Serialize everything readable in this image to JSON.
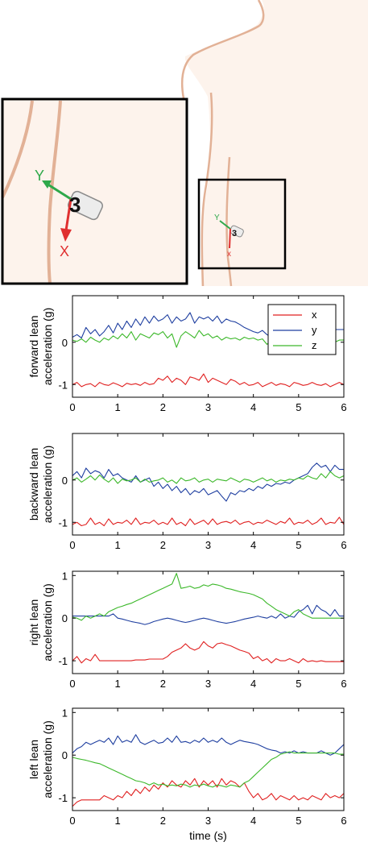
{
  "illustration": {
    "sensor_label": "3",
    "axis_x_label": "X",
    "axis_y_label": "Y",
    "small_sensor_label": "3",
    "small_axis_x_label": "x",
    "small_axis_y_label": "Y",
    "colors": {
      "skin": "#fdf3ec",
      "outline": "#e2b196",
      "x_axis": "#e03030",
      "y_axis": "#2ea84a",
      "frame": "#000000"
    }
  },
  "chart_data": [
    {
      "type": "line",
      "ylabel_line1": "forward lean",
      "ylabel_line2": "acceleration (g)",
      "xlabel": "",
      "xlim": [
        0,
        6
      ],
      "ylim": [
        -1.3,
        1.1
      ],
      "xticks": [
        "0",
        "1",
        "2",
        "3",
        "4",
        "5",
        "6"
      ],
      "yticks": [
        {
          "v": 0,
          "t": "0"
        },
        {
          "v": -1,
          "t": "-1"
        }
      ],
      "legend": {
        "position": "top-right",
        "entries": [
          "x",
          "y",
          "z"
        ]
      },
      "series": [
        {
          "name": "x",
          "color": "#e02020",
          "y": [
            -1.0,
            -0.95,
            -1.05,
            -1.0,
            -0.98,
            -1.05,
            -0.95,
            -1.0,
            -1.02,
            -0.96,
            -1.0,
            -1.05,
            -0.97,
            -1.0,
            -0.98,
            -1.02,
            -0.95,
            -1.0,
            -0.98,
            -0.85,
            -0.9,
            -0.8,
            -0.95,
            -0.85,
            -0.9,
            -1.0,
            -0.82,
            -0.85,
            -0.9,
            -0.75,
            -0.95,
            -0.85,
            -0.9,
            -0.95,
            -1.0,
            -0.88,
            -0.92,
            -1.0,
            -0.95,
            -1.02,
            -1.0,
            -0.95,
            -1.05,
            -1.0,
            -0.95,
            -1.02,
            -0.98,
            -1.0,
            -1.05,
            -0.95,
            -0.98,
            -1.02,
            -1.0,
            -0.95,
            -1.0,
            -1.02,
            -0.98,
            -1.05,
            -1.0,
            -0.95,
            -1.0
          ]
        },
        {
          "name": "y",
          "color": "#1f3fa0",
          "y": [
            0.12,
            0.18,
            0.1,
            0.35,
            0.2,
            0.3,
            0.15,
            0.25,
            0.4,
            0.22,
            0.45,
            0.3,
            0.5,
            0.35,
            0.55,
            0.4,
            0.6,
            0.45,
            0.62,
            0.5,
            0.55,
            0.65,
            0.45,
            0.6,
            0.5,
            0.55,
            0.7,
            0.45,
            0.6,
            0.55,
            0.6,
            0.5,
            0.62,
            0.45,
            0.55,
            0.5,
            0.48,
            0.42,
            0.35,
            0.3,
            0.25,
            0.22,
            0.28,
            0.18,
            0.12,
            0.2,
            0.15,
            0.1,
            0.12,
            0.18,
            0.08,
            0.2,
            0.12,
            0.15,
            0.05,
            0.18,
            0.25,
            0.18,
            0.3,
            0.3,
            0.3
          ]
        },
        {
          "name": "z",
          "color": "#3cb82a",
          "y": [
            0.05,
            0.02,
            0.08,
            0.0,
            0.12,
            0.05,
            0.0,
            0.1,
            0.05,
            0.15,
            0.08,
            0.2,
            0.1,
            0.25,
            0.05,
            0.2,
            0.15,
            0.1,
            0.22,
            0.18,
            0.25,
            0.1,
            0.2,
            -0.12,
            0.15,
            0.25,
            0.18,
            0.1,
            0.28,
            0.15,
            0.2,
            0.1,
            0.15,
            0.05,
            0.12,
            0.08,
            0.1,
            0.05,
            0.12,
            0.08,
            0.1,
            0.05,
            0.08,
            -0.05,
            0.05,
            0.0,
            0.05,
            -0.02,
            0.05,
            0.0,
            0.05,
            0.02,
            0.08,
            0.0,
            0.05,
            0.0,
            0.02,
            0.05,
            0.0,
            0.05,
            0.05
          ]
        }
      ]
    },
    {
      "type": "line",
      "ylabel_line1": "backward lean",
      "ylabel_line2": "acceleration (g)",
      "xlabel": "",
      "xlim": [
        0,
        6
      ],
      "ylim": [
        -1.3,
        1.1
      ],
      "xticks": [
        "0",
        "1",
        "2",
        "3",
        "4",
        "5",
        "6"
      ],
      "yticks": [
        {
          "v": 0,
          "t": "0"
        },
        {
          "v": -1,
          "t": "-1"
        }
      ],
      "series": [
        {
          "name": "x",
          "color": "#e02020",
          "y": [
            -1.05,
            -1.0,
            -1.08,
            -1.05,
            -0.9,
            -1.05,
            -1.0,
            -1.08,
            -0.92,
            -1.05,
            -1.0,
            -1.02,
            -0.95,
            -1.05,
            -0.9,
            -1.05,
            -1.0,
            -1.02,
            -0.95,
            -1.05,
            -1.0,
            -1.05,
            -0.9,
            -1.05,
            -1.0,
            -1.08,
            -0.92,
            -1.05,
            -1.0,
            -0.95,
            -1.05,
            -0.92,
            -1.05,
            -1.0,
            -0.98,
            -1.02,
            -0.95,
            -1.05,
            -1.0,
            -0.98,
            -1.05,
            -1.0,
            -1.02,
            -0.95,
            -1.0,
            -1.05,
            -0.98,
            -1.02,
            -0.9,
            -1.05,
            -1.0,
            -1.02,
            -0.95,
            -1.05,
            -1.0,
            -0.9,
            -1.05,
            -1.0,
            -1.02,
            -0.88,
            -1.05
          ]
        },
        {
          "name": "y",
          "color": "#1f3fa0",
          "y": [
            0.1,
            0.2,
            0.05,
            0.28,
            0.15,
            0.22,
            0.18,
            0.05,
            0.25,
            0.1,
            0.15,
            0.05,
            0.0,
            -0.05,
            0.1,
            -0.05,
            0.0,
            0.05,
            -0.15,
            -0.05,
            -0.2,
            -0.1,
            -0.25,
            -0.15,
            -0.3,
            -0.2,
            -0.35,
            -0.25,
            -0.3,
            -0.2,
            -0.35,
            -0.3,
            -0.25,
            -0.38,
            -0.5,
            -0.3,
            -0.35,
            -0.25,
            -0.28,
            -0.2,
            -0.25,
            -0.15,
            -0.2,
            -0.1,
            -0.15,
            -0.08,
            -0.1,
            -0.05,
            -0.08,
            0.0,
            0.05,
            0.1,
            0.15,
            0.3,
            0.4,
            0.3,
            0.35,
            0.2,
            0.35,
            0.25,
            0.25
          ]
        },
        {
          "name": "z",
          "color": "#3cb82a",
          "y": [
            0.0,
            0.05,
            -0.05,
            0.02,
            0.1,
            0.0,
            0.12,
            0.02,
            -0.05,
            0.05,
            -0.08,
            0.02,
            -0.02,
            0.0,
            0.05,
            -0.05,
            0.02,
            -0.05,
            -0.02,
            0.0,
            0.05,
            -0.05,
            0.0,
            -0.08,
            0.05,
            -0.02,
            0.0,
            0.05,
            -0.05,
            0.0,
            0.02,
            -0.05,
            0.02,
            0.0,
            -0.02,
            0.05,
            0.0,
            -0.05,
            0.02,
            0.0,
            -0.05,
            0.0,
            0.05,
            -0.02,
            0.02,
            -0.05,
            0.0,
            -0.02,
            0.02,
            0.0,
            0.05,
            0.02,
            0.1,
            0.05,
            0.02,
            0.15,
            0.05,
            0.2,
            0.1,
            0.05,
            0.1
          ]
        }
      ]
    },
    {
      "type": "line",
      "ylabel_line1": "right lean",
      "ylabel_line2": "acceleration (g)",
      "xlabel": "",
      "xlim": [
        0,
        6
      ],
      "ylim": [
        -1.3,
        1.1
      ],
      "xticks": [
        "0",
        "1",
        "2",
        "3",
        "4",
        "5",
        "6"
      ],
      "yticks": [
        {
          "v": 1,
          "t": "1"
        },
        {
          "v": 0,
          "t": "0"
        },
        {
          "v": -1,
          "t": "-1"
        }
      ],
      "series": [
        {
          "name": "x",
          "color": "#e02020",
          "y": [
            -1.0,
            -0.9,
            -1.05,
            -0.95,
            -1.0,
            -0.85,
            -1.0,
            -1.0,
            -1.0,
            -1.0,
            -1.0,
            -1.0,
            -1.0,
            -1.0,
            -0.98,
            -0.98,
            -0.98,
            -0.96,
            -0.96,
            -0.96,
            -0.96,
            -0.9,
            -0.8,
            -0.75,
            -0.7,
            -0.6,
            -0.7,
            -0.75,
            -0.7,
            -0.55,
            -0.65,
            -0.7,
            -0.6,
            -0.58,
            -0.62,
            -0.65,
            -0.7,
            -0.75,
            -0.78,
            -0.82,
            -0.95,
            -0.9,
            -1.0,
            -0.95,
            -1.05,
            -0.95,
            -1.0,
            -1.0,
            -0.95,
            -1.0,
            -1.05,
            -0.95,
            -1.02,
            -1.0,
            -1.02,
            -1.0,
            -1.02,
            -1.02,
            -1.02,
            -1.02,
            -1.02
          ]
        },
        {
          "name": "y",
          "color": "#1f3fa0",
          "y": [
            0.05,
            0.05,
            0.05,
            0.05,
            0.05,
            0.05,
            0.05,
            0.05,
            0.05,
            0.1,
            0.0,
            -0.02,
            -0.05,
            -0.08,
            -0.1,
            -0.12,
            -0.15,
            -0.12,
            -0.08,
            -0.05,
            -0.02,
            0.0,
            -0.02,
            -0.05,
            -0.08,
            -0.1,
            -0.08,
            -0.05,
            -0.02,
            0.0,
            -0.02,
            -0.05,
            -0.08,
            -0.1,
            -0.12,
            -0.1,
            -0.08,
            -0.05,
            -0.02,
            0.0,
            0.02,
            0.05,
            0.02,
            0.0,
            0.05,
            0.0,
            0.1,
            0.0,
            0.05,
            0.02,
            0.15,
            0.2,
            0.3,
            0.1,
            0.3,
            0.2,
            0.15,
            0.05,
            0.2,
            0.05,
            0.05
          ]
        },
        {
          "name": "z",
          "color": "#3cb82a",
          "y": [
            0.02,
            0.0,
            -0.05,
            0.05,
            0.0,
            0.05,
            0.1,
            0.05,
            0.15,
            0.2,
            0.25,
            0.28,
            0.32,
            0.35,
            0.4,
            0.45,
            0.5,
            0.55,
            0.6,
            0.65,
            0.7,
            0.75,
            0.8,
            1.05,
            0.7,
            0.72,
            0.75,
            0.7,
            0.72,
            0.78,
            0.75,
            0.8,
            0.78,
            0.75,
            0.7,
            0.68,
            0.65,
            0.62,
            0.6,
            0.58,
            0.55,
            0.5,
            0.45,
            0.35,
            0.28,
            0.2,
            0.15,
            0.1,
            0.05,
            0.15,
            0.2,
            0.1,
            0.05,
            0.0,
            0.0,
            0.0,
            0.0,
            0.0,
            0.0,
            0.0,
            0.0
          ]
        }
      ]
    },
    {
      "type": "line",
      "ylabel_line1": "left lean",
      "ylabel_line2": "acceleration (g)",
      "xlabel": "time (s)",
      "xlim": [
        0,
        6
      ],
      "ylim": [
        -1.3,
        1.1
      ],
      "xticks": [
        "0",
        "1",
        "2",
        "3",
        "4",
        "5",
        "6"
      ],
      "yticks": [
        {
          "v": 1,
          "t": "1"
        },
        {
          "v": 0,
          "t": "0"
        },
        {
          "v": -1,
          "t": "-1"
        }
      ],
      "series": [
        {
          "name": "x",
          "color": "#e02020",
          "y": [
            -1.2,
            -1.1,
            -1.05,
            -1.05,
            -1.05,
            -1.05,
            -1.05,
            -0.95,
            -1.0,
            -1.05,
            -0.95,
            -1.0,
            -0.85,
            -0.95,
            -0.8,
            -0.9,
            -0.75,
            -0.85,
            -0.7,
            -0.8,
            -0.65,
            -0.75,
            -0.6,
            -0.7,
            -0.75,
            -0.6,
            -0.7,
            -0.55,
            -0.75,
            -0.6,
            -0.7,
            -0.6,
            -0.75,
            -0.55,
            -0.7,
            -0.6,
            -0.65,
            -0.75,
            -0.65,
            -0.85,
            -1.0,
            -0.9,
            -1.05,
            -1.0,
            -0.9,
            -1.05,
            -0.95,
            -1.0,
            -1.05,
            -0.95,
            -1.05,
            -1.0,
            -1.05,
            -0.95,
            -1.0,
            -1.05,
            -0.9,
            -1.0,
            -0.95,
            -1.0,
            -0.9
          ]
        },
        {
          "name": "y",
          "color": "#1f3fa0",
          "y": [
            0.05,
            0.15,
            0.2,
            0.3,
            0.25,
            0.3,
            0.35,
            0.3,
            0.4,
            0.25,
            0.45,
            0.3,
            0.35,
            0.3,
            0.48,
            0.3,
            0.25,
            0.3,
            0.35,
            0.28,
            0.3,
            0.4,
            0.3,
            0.45,
            0.3,
            0.32,
            0.28,
            0.35,
            0.3,
            0.4,
            0.3,
            0.35,
            0.3,
            0.4,
            0.3,
            0.25,
            0.3,
            0.35,
            0.32,
            0.3,
            0.28,
            0.25,
            0.2,
            0.15,
            0.12,
            0.1,
            0.05,
            0.08,
            0.05,
            0.1,
            0.05,
            0.08,
            0.05,
            0.05,
            0.05,
            0.1,
            0.05,
            0.0,
            0.05,
            0.15,
            0.25
          ]
        },
        {
          "name": "z",
          "color": "#3cb82a",
          "y": [
            -0.05,
            -0.08,
            -0.1,
            -0.12,
            -0.15,
            -0.18,
            -0.2,
            -0.25,
            -0.3,
            -0.35,
            -0.4,
            -0.45,
            -0.5,
            -0.55,
            -0.6,
            -0.62,
            -0.65,
            -0.7,
            -0.65,
            -0.7,
            -0.68,
            -0.72,
            -0.7,
            -0.72,
            -0.68,
            -0.7,
            -0.75,
            -0.7,
            -0.72,
            -0.68,
            -0.72,
            -0.75,
            -0.7,
            -0.72,
            -0.75,
            -0.7,
            -0.72,
            -0.75,
            -0.65,
            -0.6,
            -0.5,
            -0.4,
            -0.3,
            -0.2,
            -0.1,
            -0.05,
            0.02,
            0.05,
            0.08,
            0.05,
            0.05,
            0.05,
            0.05,
            0.05,
            0.05,
            0.05,
            0.05,
            0.05,
            0.05,
            0.02,
            0.02
          ]
        }
      ]
    }
  ]
}
